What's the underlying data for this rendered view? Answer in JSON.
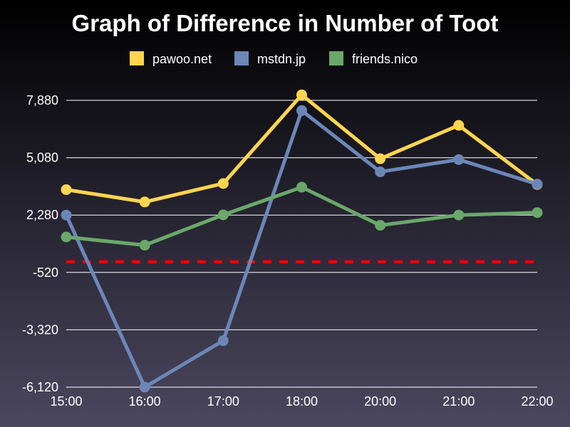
{
  "chart_data": {
    "type": "line",
    "title": "Graph of Difference in Number of Toot",
    "xlabel": "",
    "ylabel": "",
    "categories": [
      "15:00",
      "16:00",
      "17:00",
      "18:00",
      "20:00",
      "21:00",
      "22:00"
    ],
    "yticks": [
      "7,880",
      "5,080",
      "2,280",
      "-520",
      "-3,320",
      "-6,120"
    ],
    "ytick_values": [
      7880,
      5080,
      2280,
      -520,
      -3320,
      -6120
    ],
    "ylim": [
      -6120,
      7880
    ],
    "grid": "horizontal",
    "legend_position": "top-center",
    "series": [
      {
        "name": "pawoo.net",
        "color": "#ffd54f",
        "values": [
          3520,
          2920,
          3820,
          8150,
          5030,
          6660,
          3770
        ]
      },
      {
        "name": "mstdn.jp",
        "color": "#6b87b8",
        "values": [
          2280,
          -6120,
          -3850,
          7380,
          4390,
          4990,
          3790
        ]
      },
      {
        "name": "friends.nico",
        "color": "#6aa86a",
        "values": [
          1210,
          810,
          2290,
          3640,
          1780,
          2280,
          2400
        ]
      }
    ],
    "reference_line": {
      "value": 0,
      "color": "#ff0000",
      "style": "dashed"
    }
  }
}
